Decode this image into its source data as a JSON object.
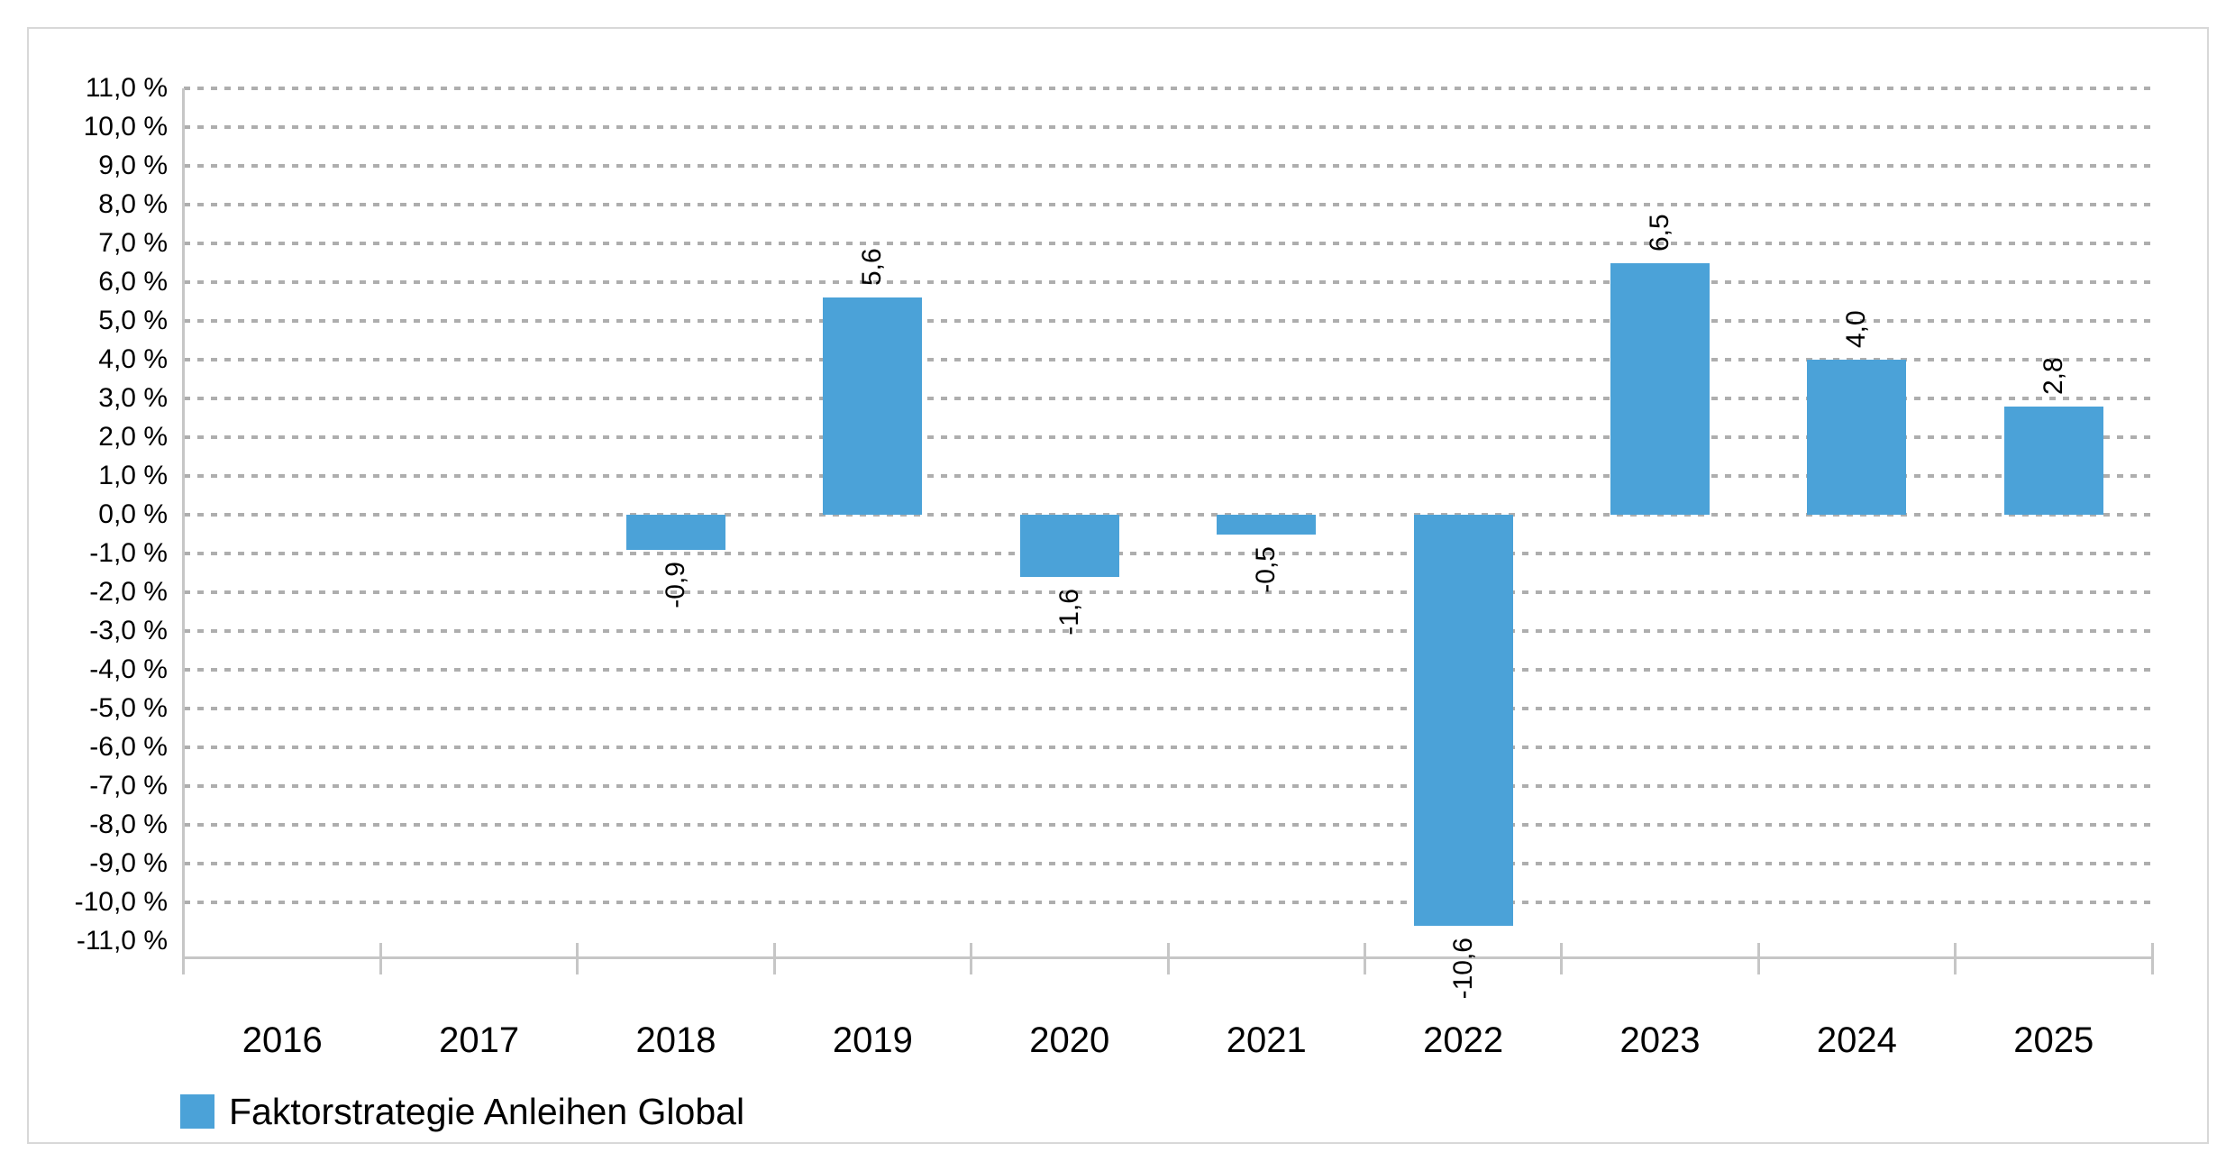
{
  "chart_data": {
    "type": "bar",
    "title": "",
    "categories": [
      "2016",
      "2017",
      "2018",
      "2019",
      "2020",
      "2021",
      "2022",
      "2023",
      "2024",
      "2025"
    ],
    "series": [
      {
        "name": "Faktorstrategie Anleihen Global",
        "values": [
          null,
          null,
          -0.9,
          5.6,
          -1.6,
          -0.5,
          -10.6,
          6.5,
          4.0,
          2.8
        ],
        "value_labels": [
          null,
          null,
          "-0,9",
          "5,6",
          "-1,6",
          "-0,5",
          "-10,6",
          "6,5",
          "4,0",
          "2,8"
        ],
        "color": "#4ba2d8"
      }
    ],
    "xlabel": "",
    "ylabel": "",
    "ylim": [
      -11.4,
      11.0
    ],
    "y_axis": {
      "unit": "%",
      "step": 1.0,
      "tick_labels": [
        "11,0 %",
        "10,0 %",
        "9,0 %",
        "8,0 %",
        "7,0 %",
        "6,0 %",
        "5,0 %",
        "4,0 %",
        "3,0 %",
        "2,0 %",
        "1,0 %",
        "0,0 %",
        "-1,0 %",
        "-2,0 %",
        "-3,0 %",
        "-4,0 %",
        "-5,0 %",
        "-6,0 %",
        "-7,0 %",
        "-8,0 %",
        "-9,0 %",
        "-10,0 %",
        "-11,0 %"
      ],
      "tick_values": [
        11,
        10,
        9,
        8,
        7,
        6,
        5,
        4,
        3,
        2,
        1,
        0,
        -1,
        -2,
        -3,
        -4,
        -5,
        -6,
        -7,
        -8,
        -9,
        -10,
        -11
      ],
      "gridline_values": [
        11,
        10,
        9,
        8,
        7,
        6,
        5,
        4,
        3,
        2,
        1,
        0,
        -1,
        -2,
        -3,
        -4,
        -5,
        -6,
        -7,
        -8,
        -9,
        -10
      ]
    },
    "grid": "dotted-horizontal",
    "legend_position": "bottom-left",
    "data_label_rotation": -90
  },
  "legend": {
    "label": "Faktorstrategie Anleihen Global"
  },
  "colors": {
    "bar": "#4ba2d8",
    "gridline": "#aeaeae",
    "axis": "#c6c6c6",
    "figure_border": "#d8d8d8",
    "text": "#000000"
  }
}
